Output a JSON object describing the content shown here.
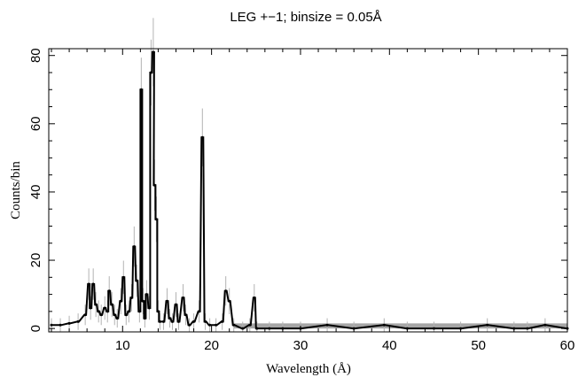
{
  "chart_data": {
    "type": "line",
    "title": "LEG +−1; binsize = 0.05Å",
    "xlabel": "Wavelength (Å)",
    "ylabel": "Counts/bin",
    "xlim": [
      1.7,
      60
    ],
    "ylim": [
      -1,
      82
    ],
    "xticks": [
      10,
      20,
      30,
      40,
      50,
      60
    ],
    "xtick_labels": [
      "10",
      "20",
      "30",
      "40",
      "50",
      "60"
    ],
    "yticks": [
      0,
      20,
      40,
      60,
      80
    ],
    "ytick_labels": [
      "0",
      "20",
      "40",
      "60",
      "80"
    ],
    "grid": false,
    "legend": "none",
    "colors": {
      "data": "#000000",
      "errorbar": "#b3b3b3",
      "background_band": "#a6a6a6"
    },
    "background_band": {
      "y_low": 0,
      "y_high": 1.5,
      "x_start": 22.5,
      "x_end": 60
    },
    "series": [
      {
        "x": [
          2.0,
          3.0,
          4.0,
          5.0,
          5.8,
          6.2,
          6.4,
          6.7,
          7.0,
          7.3,
          7.6,
          8.0,
          8.3,
          8.5,
          8.8,
          9.1,
          9.4,
          9.8,
          10.1,
          10.4,
          10.7,
          11.0,
          11.3,
          11.6,
          11.9,
          12.1,
          12.3,
          12.5,
          12.7,
          13.0,
          13.2,
          13.45,
          13.6,
          13.8,
          14.0,
          14.2,
          14.6,
          15.0,
          15.3,
          15.6,
          16.0,
          16.3,
          16.8,
          17.1,
          17.5,
          18.0,
          18.6,
          18.97,
          19.3,
          19.8,
          20.5,
          21.2,
          21.6,
          22.0,
          22.5,
          23.5,
          24.3,
          24.8,
          25.1,
          26.5,
          28.0,
          30.0,
          33.0,
          36.0,
          39.4,
          42.0,
          45.0,
          48.0,
          51.0,
          54.0,
          55.5,
          57.5,
          60.0
        ],
        "y": [
          1,
          1,
          1.5,
          2,
          4,
          13,
          6,
          13,
          7,
          5,
          4,
          6,
          5,
          11,
          7,
          4,
          3,
          8,
          15,
          4,
          5,
          9,
          24,
          14,
          5,
          70,
          8,
          3,
          10,
          6,
          75,
          81,
          42,
          32,
          5,
          2,
          2,
          8,
          3,
          2,
          7,
          2,
          9,
          4,
          1,
          2,
          5,
          56,
          2,
          1,
          1,
          2,
          11,
          8,
          1,
          0,
          1,
          9,
          0,
          0,
          0,
          0,
          1,
          0,
          1,
          0,
          0,
          0,
          1,
          0,
          0,
          1,
          0
        ]
      }
    ]
  }
}
